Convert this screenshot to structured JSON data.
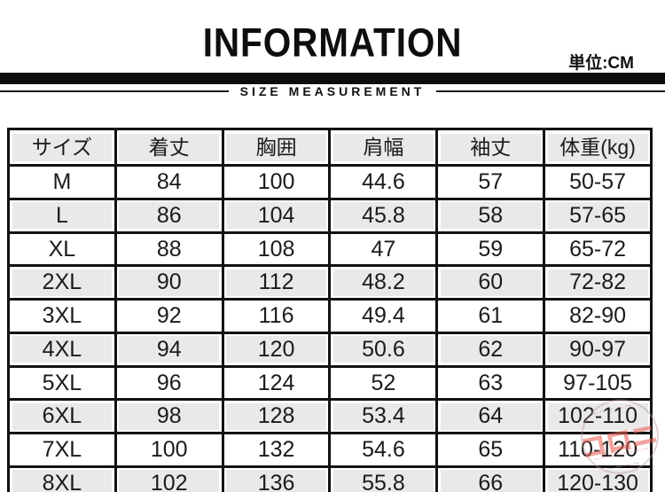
{
  "header": {
    "title": "INFORMATION",
    "unit_label": "単位:CM",
    "subtitle": "SIZE MEASUREMENT"
  },
  "table": {
    "columns": [
      "サイズ",
      "着丈",
      "胸囲",
      "肩幅",
      "袖丈",
      "体重(kg)"
    ],
    "rows": [
      [
        "M",
        "84",
        "100",
        "44.6",
        "57",
        "50-57"
      ],
      [
        "L",
        "86",
        "104",
        "45.8",
        "58",
        "57-65"
      ],
      [
        "XL",
        "88",
        "108",
        "47",
        "59",
        "65-72"
      ],
      [
        "2XL",
        "90",
        "112",
        "48.2",
        "60",
        "72-82"
      ],
      [
        "3XL",
        "92",
        "116",
        "49.4",
        "61",
        "82-90"
      ],
      [
        "4XL",
        "94",
        "120",
        "50.6",
        "62",
        "90-97"
      ],
      [
        "5XL",
        "96",
        "124",
        "52",
        "63",
        "97-105"
      ],
      [
        "6XL",
        "98",
        "128",
        "53.4",
        "64",
        "102-110"
      ],
      [
        "7XL",
        "100",
        "132",
        "54.6",
        "65",
        "110-120"
      ],
      [
        "8XL",
        "102",
        "136",
        "55.8",
        "66",
        "120-130"
      ]
    ]
  },
  "watermark": {
    "main_text": "コロニ",
    "arc_top_text": "〜〜・〜〜",
    "sub_text": "〜〜〜〜〜〜〜〜",
    "arc_bottom_text": "〜〜〜〜"
  },
  "colors": {
    "background": "#ffffff",
    "divider_bar": "#0c0c0c",
    "table_border": "#121212",
    "row_gray": "#e9e9e9",
    "text": "#1b1b1b",
    "watermark_red": "#e76056",
    "watermark_ring": "#ba9898"
  }
}
